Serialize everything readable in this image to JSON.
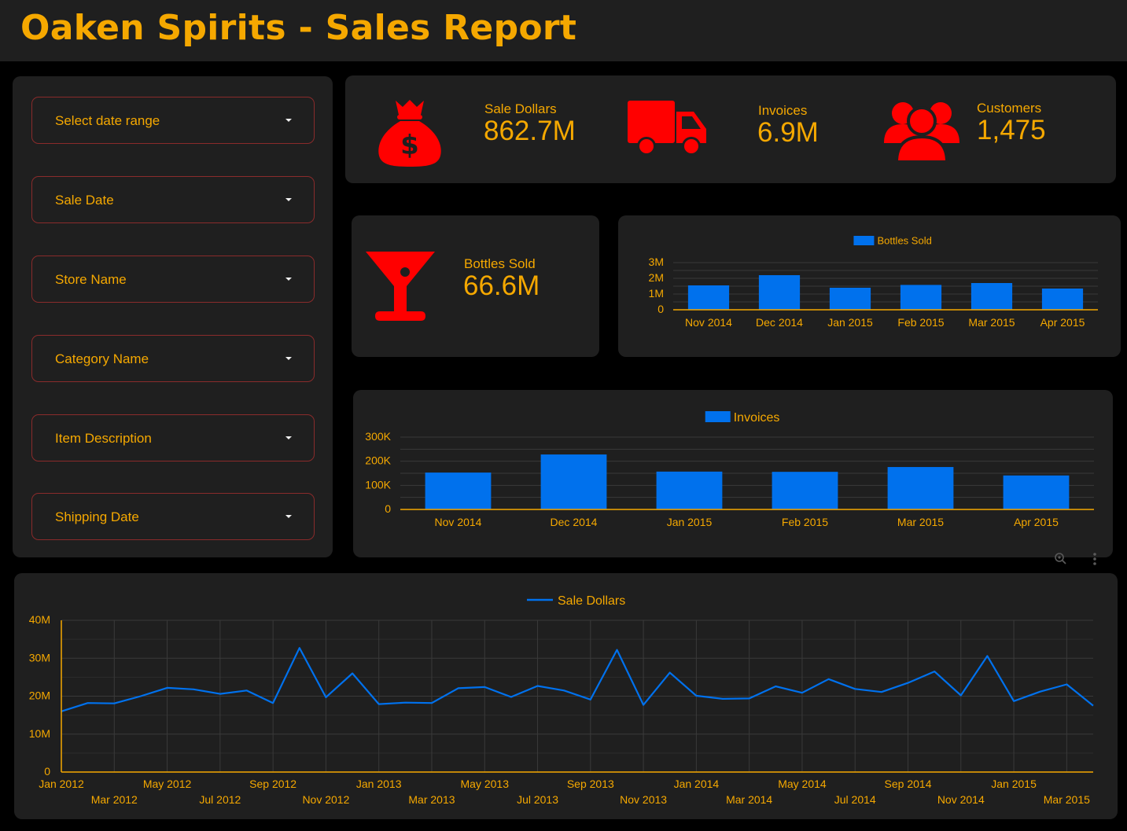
{
  "header": {
    "title": "Oaken Spirits - Sales Report"
  },
  "filters": [
    {
      "label": "Select date range"
    },
    {
      "label": "Sale Date"
    },
    {
      "label": "Store Name"
    },
    {
      "label": "Category Name"
    },
    {
      "label": "Item Description"
    },
    {
      "label": "Shipping Date"
    }
  ],
  "kpis": {
    "sale_dollars": {
      "label": "Sale Dollars",
      "value": "862.7M",
      "icon": "money-bag-icon"
    },
    "invoices": {
      "label": "Invoices",
      "value": "6.9M",
      "icon": "truck-icon"
    },
    "customers": {
      "label": "Customers",
      "value": "1,475",
      "icon": "users-icon"
    },
    "bottles_sold": {
      "label": "Bottles Sold",
      "value": "66.6M",
      "icon": "cocktail-glass-icon"
    }
  },
  "colors": {
    "accent": "#f5a800",
    "icon": "#ff0000",
    "series": "#0071ed",
    "panel": "#1f1f1f",
    "background": "#000000"
  },
  "chart_data": [
    {
      "id": "bottles",
      "type": "bar",
      "categories": [
        "Nov 2014",
        "Dec 2014",
        "Jan 2015",
        "Feb 2015",
        "Mar 2015",
        "Apr 2015"
      ],
      "series": [
        {
          "name": "Bottles Sold",
          "values": [
            1550000,
            2200000,
            1400000,
            1580000,
            1700000,
            1350000
          ]
        }
      ],
      "ylim": [
        0,
        3000000
      ],
      "yticks": [
        "0",
        "1M",
        "2M",
        "3M"
      ],
      "grid": true,
      "legend": "top-center"
    },
    {
      "id": "invoices",
      "type": "bar",
      "categories": [
        "Nov 2014",
        "Dec 2014",
        "Jan 2015",
        "Feb 2015",
        "Mar 2015",
        "Apr 2015"
      ],
      "series": [
        {
          "name": "Invoices",
          "values": [
            153000,
            228000,
            157000,
            156000,
            176000,
            141000
          ]
        }
      ],
      "ylim": [
        0,
        300000
      ],
      "yticks": [
        "0",
        "100K",
        "200K",
        "300K"
      ],
      "grid": true,
      "legend": "top-center"
    },
    {
      "id": "sales",
      "type": "line",
      "x": [
        "Jan 2012",
        "Feb 2012",
        "Mar 2012",
        "Apr 2012",
        "May 2012",
        "Jun 2012",
        "Jul 2012",
        "Aug 2012",
        "Sep 2012",
        "Oct 2012",
        "Nov 2012",
        "Dec 2012",
        "Jan 2013",
        "Feb 2013",
        "Mar 2013",
        "Apr 2013",
        "May 2013",
        "Jun 2013",
        "Jul 2013",
        "Aug 2013",
        "Sep 2013",
        "Oct 2013",
        "Nov 2013",
        "Dec 2013",
        "Jan 2014",
        "Feb 2014",
        "Mar 2014",
        "Apr 2014",
        "May 2014",
        "Jun 2014",
        "Jul 2014",
        "Aug 2014",
        "Sep 2014",
        "Oct 2014",
        "Nov 2014",
        "Dec 2014",
        "Jan 2015",
        "Feb 2015",
        "Mar 2015",
        "Apr 2015"
      ],
      "series": [
        {
          "name": "Sale Dollars",
          "values": [
            16000000,
            18200000,
            18100000,
            20000000,
            22200000,
            21800000,
            20600000,
            21500000,
            18200000,
            32700000,
            19700000,
            26000000,
            17900000,
            18300000,
            18200000,
            22100000,
            22400000,
            19800000,
            22700000,
            21500000,
            19100000,
            32200000,
            17700000,
            26200000,
            20100000,
            19300000,
            19400000,
            22600000,
            20900000,
            24500000,
            21900000,
            21100000,
            23500000,
            26500000,
            20200000,
            30600000,
            18700000,
            21200000,
            23100000,
            17500000
          ]
        }
      ],
      "ylim": [
        0,
        40000000
      ],
      "yticks": [
        "0",
        "10M",
        "20M",
        "30M",
        "40M"
      ],
      "grid": true,
      "legend": "top-center"
    }
  ]
}
